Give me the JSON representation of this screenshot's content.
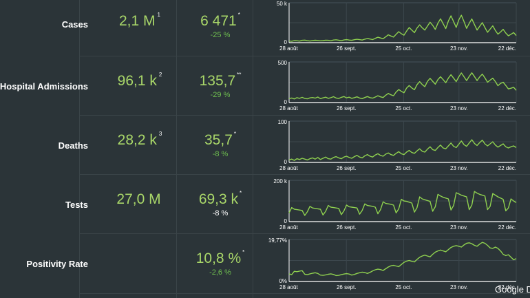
{
  "months": [
    "28 août",
    "26 sept.",
    "25 oct.",
    "23 nov.",
    "22 déc."
  ],
  "rows": [
    {
      "label": "Cases",
      "total": "2,1 M",
      "total_note": "1",
      "recent": "6 471",
      "recent_note": "*",
      "change": "-25 %",
      "change_color": "green",
      "y_max_label": "50 k",
      "y_min_label": "0",
      "y_max": 50000,
      "series": [
        2100,
        1800,
        2600,
        2400,
        2000,
        2900,
        3200,
        2500,
        2100,
        2700,
        3000,
        2800,
        2300,
        2600,
        3100,
        2900,
        2400,
        3300,
        3600,
        3100,
        2500,
        3400,
        3800,
        3300,
        2900,
        3700,
        4200,
        3800,
        3300,
        4400,
        5200,
        4600,
        3900,
        5400,
        6800,
        5900,
        5000,
        7200,
        9800,
        8400,
        7000,
        10500,
        13800,
        11200,
        9400,
        14500,
        19000,
        15800,
        12600,
        18400,
        22300,
        18600,
        15800,
        20800,
        25600,
        21700,
        16600,
        24400,
        29900,
        23800,
        17700,
        27100,
        33600,
        26400,
        19100,
        28600,
        34400,
        26500,
        17900,
        24200,
        29700,
        22700,
        15800,
        20500,
        25100,
        19000,
        13000,
        17000,
        21100,
        15300,
        10700,
        13400,
        16700,
        12100,
        8600,
        10500,
        12600,
        9000
      ]
    },
    {
      "label": "Hospital Admissions",
      "total": "96,1 k",
      "total_note": "2",
      "recent": "135,7",
      "recent_note": "**",
      "change": "-29 %",
      "change_color": "green",
      "y_max_label": "500",
      "y_min_label": "0",
      "y_max": 500,
      "series": [
        48,
        56,
        44,
        60,
        52,
        64,
        50,
        46,
        58,
        62,
        54,
        68,
        48,
        58,
        66,
        52,
        60,
        72,
        56,
        50,
        64,
        74,
        58,
        66,
        52,
        60,
        70,
        56,
        48,
        62,
        74,
        60,
        54,
        68,
        84,
        70,
        62,
        90,
        112,
        96,
        84,
        130,
        160,
        138,
        120,
        178,
        210,
        180,
        158,
        220,
        258,
        222,
        196,
        260,
        298,
        262,
        226,
        282,
        318,
        282,
        244,
        300,
        342,
        300,
        258,
        318,
        364,
        318,
        270,
        322,
        366,
        320,
        270,
        316,
        350,
        304,
        250,
        276,
        300,
        258,
        208,
        236,
        250,
        210,
        168,
        176,
        188,
        150
      ]
    },
    {
      "label": "Deaths",
      "total": "28,2 k",
      "total_note": "3",
      "recent": "35,7",
      "recent_note": "*",
      "change": "-8 %",
      "change_color": "green",
      "y_max_label": "100",
      "y_min_label": "0",
      "y_max": 100,
      "series": [
        6,
        8,
        5,
        9,
        7,
        10,
        8,
        6,
        9,
        11,
        8,
        12,
        7,
        10,
        13,
        9,
        8,
        12,
        14,
        11,
        9,
        13,
        15,
        12,
        10,
        14,
        17,
        13,
        11,
        16,
        19,
        15,
        13,
        18,
        21,
        17,
        15,
        20,
        23,
        19,
        17,
        22,
        26,
        21,
        19,
        25,
        29,
        24,
        22,
        28,
        33,
        27,
        25,
        32,
        38,
        31,
        29,
        36,
        42,
        35,
        33,
        40,
        47,
        39,
        36,
        44,
        52,
        43,
        39,
        47,
        55,
        46,
        41,
        48,
        54,
        45,
        40,
        45,
        50,
        42,
        37,
        41,
        45,
        38,
        35,
        38,
        40,
        36
      ]
    },
    {
      "label": "Tests",
      "total": "27,0 M",
      "total_note": "",
      "recent": "69,3 k",
      "recent_note": "*",
      "change": "-8 %",
      "change_color": "white",
      "y_max_label": "200 k",
      "y_min_label": "0",
      "y_max": 200000,
      "series": [
        42000,
        68000,
        60000,
        58000,
        56000,
        54000,
        30000,
        48000,
        74000,
        66000,
        64000,
        62000,
        60000,
        32000,
        50000,
        78000,
        70000,
        68000,
        66000,
        64000,
        34000,
        52000,
        80000,
        72000,
        70000,
        68000,
        66000,
        36000,
        54000,
        86000,
        78000,
        76000,
        74000,
        70000,
        38000,
        58000,
        96000,
        88000,
        86000,
        84000,
        80000,
        42000,
        62000,
        108000,
        100000,
        98000,
        94000,
        90000,
        46000,
        68000,
        120000,
        110000,
        106000,
        102000,
        98000,
        50000,
        72000,
        132000,
        124000,
        118000,
        114000,
        110000,
        56000,
        78000,
        140000,
        134000,
        128000,
        124000,
        120000,
        58000,
        80000,
        146000,
        138000,
        132000,
        128000,
        124000,
        58000,
        74000,
        136000,
        128000,
        120000,
        114000,
        108000,
        52000,
        66000,
        110000,
        100000,
        92000
      ]
    },
    {
      "label": "Positivity Rate",
      "total": "",
      "total_note": "",
      "recent": "10,8 %",
      "recent_note": "*",
      "change": "-2,6 %",
      "change_color": "green",
      "y_max_label": "19,77%",
      "y_min_label": "0%",
      "y_max": 19.77,
      "series": [
        3.6,
        3.2,
        4.8,
        4.6,
        4.9,
        5.1,
        3.4,
        3.2,
        3.6,
        3.9,
        4.1,
        3.8,
        3.0,
        2.9,
        3.1,
        3.4,
        3.6,
        3.3,
        2.8,
        2.9,
        3.2,
        3.5,
        3.7,
        3.5,
        3.0,
        3.3,
        3.8,
        4.1,
        4.4,
        4.2,
        3.8,
        4.3,
        5.0,
        5.5,
        5.8,
        5.6,
        5.2,
        6.0,
        6.8,
        7.4,
        7.6,
        7.3,
        7.0,
        8.0,
        9.0,
        9.6,
        9.9,
        9.5,
        9.2,
        10.4,
        11.4,
        12.0,
        12.4,
        12.0,
        11.6,
        12.8,
        13.8,
        14.4,
        14.8,
        14.4,
        14.0,
        15.0,
        16.0,
        16.6,
        16.9,
        16.6,
        16.2,
        17.2,
        18.0,
        18.2,
        17.8,
        17.0,
        16.6,
        17.6,
        18.4,
        18.0,
        17.0,
        15.8,
        15.6,
        16.2,
        15.6,
        14.4,
        12.8,
        12.2,
        12.6,
        11.4,
        10.2,
        10.8
      ]
    }
  ],
  "footer": "Google D"
}
